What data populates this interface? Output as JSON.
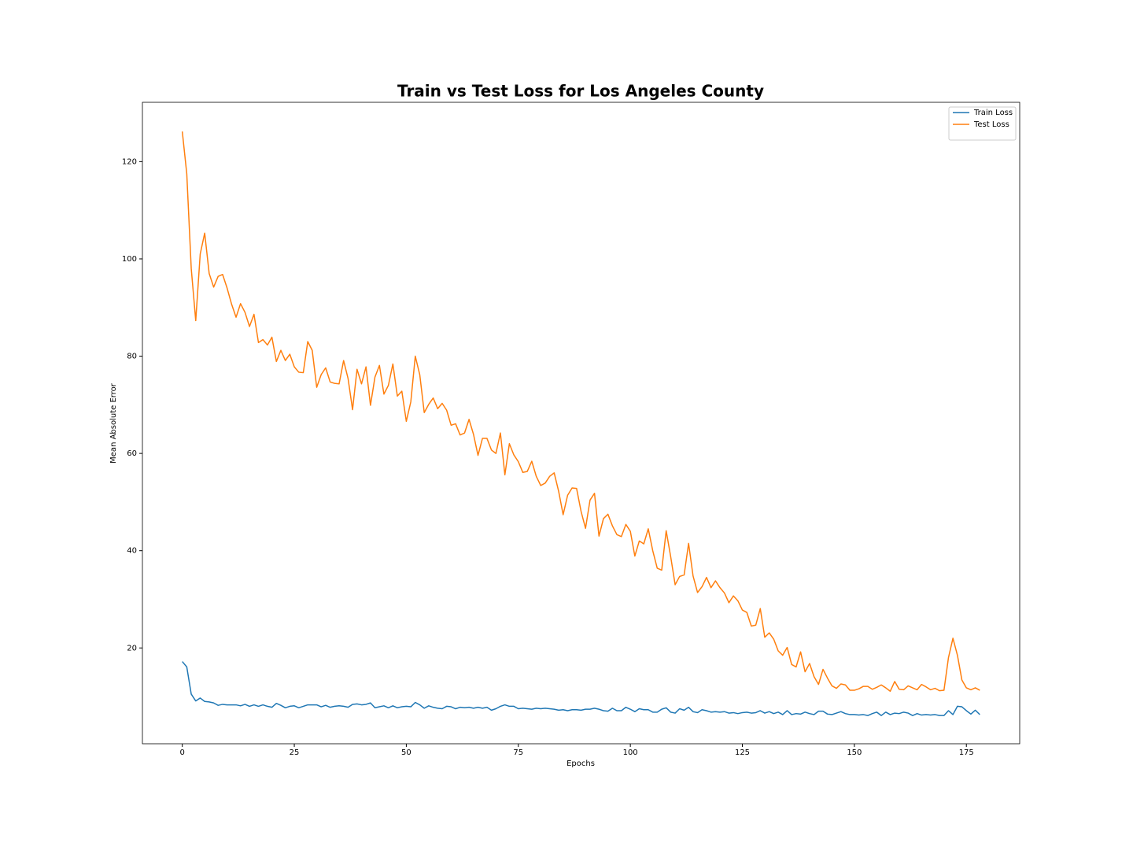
{
  "chart_data": {
    "type": "line",
    "title": "Train vs Test Loss for Los Angeles County",
    "x_label": "Epochs",
    "y_label": "Mean Absolute Error",
    "x": [
      0,
      1,
      2,
      3,
      4,
      5,
      6,
      7,
      8,
      9,
      10,
      11,
      12,
      13,
      14,
      15,
      16,
      17,
      18,
      19,
      20,
      21,
      22,
      23,
      24,
      25,
      26,
      27,
      28,
      29,
      30,
      31,
      32,
      33,
      34,
      35,
      36,
      37,
      38,
      39,
      40,
      41,
      42,
      43,
      44,
      45,
      46,
      47,
      48,
      49,
      50,
      51,
      52,
      53,
      54,
      55,
      56,
      57,
      58,
      59,
      60,
      61,
      62,
      63,
      64,
      65,
      66,
      67,
      68,
      69,
      70,
      71,
      72,
      73,
      74,
      75,
      76,
      77,
      78,
      79,
      80,
      81,
      82,
      83,
      84,
      85,
      86,
      87,
      88,
      89,
      90,
      91,
      92,
      93,
      94,
      95,
      96,
      97,
      98,
      99,
      100,
      101,
      102,
      103,
      104,
      105,
      106,
      107,
      108,
      109,
      110,
      111,
      112,
      113,
      114,
      115,
      116,
      117,
      118,
      119,
      120,
      121,
      122,
      123,
      124,
      125,
      126,
      127,
      128,
      129,
      130,
      131,
      132,
      133,
      134,
      135,
      136,
      137,
      138,
      139,
      140,
      141,
      142,
      143,
      144,
      145,
      146,
      147,
      148,
      149,
      150,
      151,
      152,
      153,
      154,
      155,
      156,
      157,
      158,
      159,
      160,
      161,
      162,
      163,
      164,
      165,
      166,
      167,
      168,
      169,
      170,
      171,
      172,
      173,
      174,
      175,
      176,
      177,
      178
    ],
    "series": [
      {
        "name": "Train Loss",
        "color": "#1f77b4",
        "values": [
          17.2,
          16.1,
          10.5,
          9.1,
          9.7,
          9,
          8.9,
          8.7,
          8.2,
          8.4,
          8.3,
          8.3,
          8.3,
          8.1,
          8.4,
          8,
          8.3,
          8,
          8.3,
          8,
          7.8,
          8.6,
          8.2,
          7.7,
          8,
          8.1,
          7.7,
          8,
          8.3,
          8.3,
          8.3,
          7.9,
          8.2,
          7.8,
          8,
          8.1,
          8,
          7.8,
          8.4,
          8.5,
          8.3,
          8.4,
          8.7,
          7.7,
          7.9,
          8.1,
          7.7,
          8.1,
          7.7,
          7.9,
          8,
          7.9,
          8.8,
          8.3,
          7.6,
          8.1,
          7.8,
          7.6,
          7.5,
          8,
          7.9,
          7.5,
          7.8,
          7.7,
          7.8,
          7.6,
          7.8,
          7.6,
          7.8,
          7.2,
          7.5,
          8,
          8.3,
          8,
          8,
          7.5,
          7.6,
          7.5,
          7.4,
          7.6,
          7.5,
          7.6,
          7.5,
          7.4,
          7.2,
          7.3,
          7.1,
          7.3,
          7.3,
          7.2,
          7.4,
          7.4,
          7.6,
          7.4,
          7.1,
          7,
          7.6,
          7.1,
          7.1,
          7.8,
          7.4,
          6.9,
          7.5,
          7.3,
          7.3,
          6.8,
          6.8,
          7.4,
          7.7,
          6.8,
          6.6,
          7.5,
          7.2,
          7.8,
          6.9,
          6.7,
          7.3,
          7.1,
          6.8,
          6.9,
          6.8,
          6.9,
          6.6,
          6.7,
          6.5,
          6.7,
          6.8,
          6.6,
          6.7,
          7.1,
          6.6,
          6.9,
          6.5,
          6.8,
          6.3,
          7.1,
          6.3,
          6.5,
          6.4,
          6.8,
          6.5,
          6.3,
          7,
          7,
          6.4,
          6.3,
          6.6,
          6.9,
          6.5,
          6.3,
          6.3,
          6.2,
          6.3,
          6.1,
          6.5,
          6.8,
          6.1,
          6.8,
          6.3,
          6.6,
          6.5,
          6.8,
          6.6,
          6.1,
          6.5,
          6.2,
          6.3,
          6.2,
          6.3,
          6.1,
          6.1,
          7.1,
          6.3,
          8,
          7.9,
          7.1,
          6.4,
          7.2,
          6.3
        ]
      },
      {
        "name": "Test Loss",
        "color": "#ff7f0e",
        "values": [
          126.2,
          117.5,
          98,
          87.3,
          101,
          105.3,
          97,
          94.2,
          96.4,
          96.8,
          94,
          90.7,
          88,
          90.8,
          89,
          86.1,
          88.6,
          82.8,
          83.4,
          82.3,
          83.9,
          78.9,
          81.2,
          79.1,
          80.4,
          77.8,
          76.7,
          76.6,
          83,
          81.2,
          73.6,
          76.2,
          77.6,
          74.7,
          74.4,
          74.3,
          79.1,
          75.4,
          69,
          77.3,
          74.3,
          77.8,
          69.9,
          75.7,
          78.1,
          72.2,
          74,
          78.4,
          71.8,
          72.8,
          66.6,
          70.6,
          80,
          76.2,
          68.4,
          70.1,
          71.4,
          69.2,
          70.3,
          68.9,
          65.8,
          66.1,
          63.8,
          64.2,
          67,
          63.9,
          59.6,
          63.1,
          63.1,
          60.7,
          60,
          64.2,
          55.6,
          62,
          59.7,
          58.3,
          56.1,
          56.3,
          58.4,
          55.3,
          53.4,
          53.9,
          55.3,
          56,
          52.2,
          47.4,
          51.4,
          52.9,
          52.8,
          48.1,
          44.6,
          50.4,
          51.8,
          43,
          46.6,
          47.5,
          45.1,
          43.3,
          42.9,
          45.4,
          44,
          38.9,
          42,
          41.4,
          44.5,
          40,
          36.4,
          36,
          44.1,
          38.8,
          33,
          34.7,
          35,
          41.5,
          34.8,
          31.4,
          32.6,
          34.5,
          32.4,
          33.8,
          32.4,
          31.3,
          29.3,
          30.7,
          29.7,
          27.8,
          27.3,
          24.5,
          24.7,
          28.1,
          22.2,
          23.1,
          21.8,
          19.4,
          18.5,
          20.1,
          16.6,
          16.1,
          19.2,
          15.1,
          16.8,
          14.1,
          12.5,
          15.6,
          13.8,
          12.2,
          11.7,
          12.6,
          12.4,
          11.3,
          11.3,
          11.6,
          12.1,
          12.1,
          11.5,
          11.9,
          12.4,
          11.8,
          11.1,
          13.1,
          11.5,
          11.4,
          12.2,
          11.8,
          11.4,
          12.5,
          12,
          11.4,
          11.7,
          11.2,
          11.3,
          18,
          22,
          18.5,
          13.4,
          11.8,
          11.4,
          11.8,
          11.3
        ]
      }
    ],
    "xlim": [
      -8.9,
      186.9
    ],
    "xticks": [
      0,
      25,
      50,
      75,
      100,
      125,
      150,
      175
    ],
    "ylim": [
      0.3,
      132.2
    ],
    "yticks": [
      20,
      40,
      60,
      80,
      100,
      120
    ],
    "legend": "upper right"
  }
}
